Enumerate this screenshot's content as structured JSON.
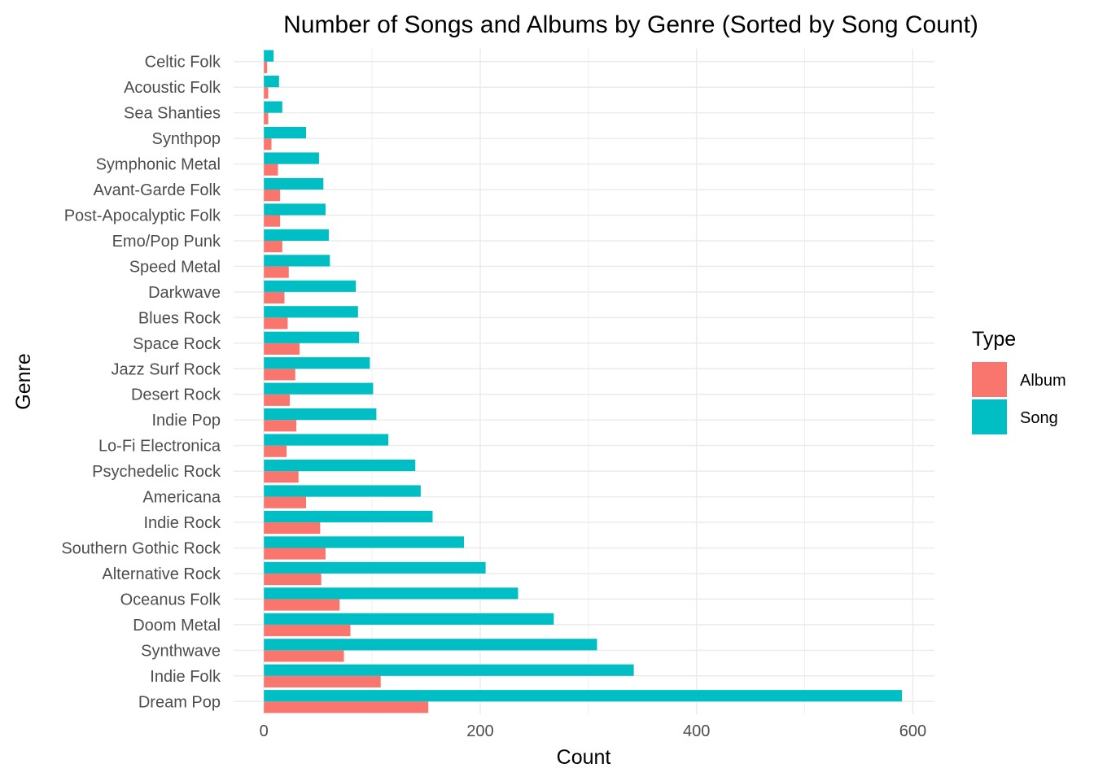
{
  "chart_data": {
    "type": "bar",
    "orientation": "horizontal",
    "title": "Number of Songs and Albums by Genre (Sorted by Song Count)",
    "xlabel": "Count",
    "ylabel": "Genre",
    "xlim": [
      -28,
      620
    ],
    "xticks": [
      0,
      200,
      400,
      600
    ],
    "grid": true,
    "legend": {
      "title": "Type",
      "position": "right"
    },
    "categories": [
      "Dream Pop",
      "Indie Folk",
      "Synthwave",
      "Doom Metal",
      "Oceanus Folk",
      "Alternative Rock",
      "Southern Gothic Rock",
      "Indie Rock",
      "Americana",
      "Psychedelic Rock",
      "Lo-Fi Electronica",
      "Indie Pop",
      "Desert Rock",
      "Jazz Surf Rock",
      "Space Rock",
      "Blues Rock",
      "Darkwave",
      "Speed Metal",
      "Emo/Pop Punk",
      "Post-Apocalyptic Folk",
      "Avant-Garde Folk",
      "Symphonic Metal",
      "Synthpop",
      "Sea Shanties",
      "Acoustic Folk",
      "Celtic Folk"
    ],
    "series": [
      {
        "name": "Album",
        "color": "#F8766D",
        "values": [
          152,
          108,
          74,
          80,
          70,
          53,
          57,
          52,
          39,
          32,
          21,
          30,
          24,
          29,
          33,
          22,
          19,
          23,
          17,
          15,
          15,
          13,
          7,
          4,
          4,
          3
        ]
      },
      {
        "name": "Song",
        "color": "#00BFC4",
        "values": [
          590,
          342,
          308,
          268,
          235,
          205,
          185,
          156,
          145,
          140,
          115,
          104,
          101,
          98,
          88,
          87,
          85,
          61,
          60,
          57,
          55,
          51,
          39,
          17,
          14,
          9
        ]
      }
    ]
  }
}
